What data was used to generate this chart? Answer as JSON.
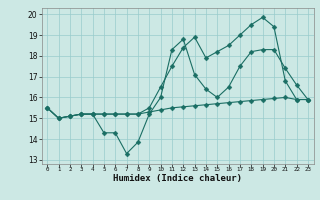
{
  "xlabel": "Humidex (Indice chaleur)",
  "bg_color": "#cce8e4",
  "line_color": "#1a6e64",
  "grid_color": "#99cccc",
  "xlim": [
    -0.5,
    23.5
  ],
  "ylim": [
    12.8,
    20.3
  ],
  "yticks": [
    13,
    14,
    15,
    16,
    17,
    18,
    19,
    20
  ],
  "xticks": [
    0,
    1,
    2,
    3,
    4,
    5,
    6,
    7,
    8,
    9,
    10,
    11,
    12,
    13,
    14,
    15,
    16,
    17,
    18,
    19,
    20,
    21,
    22,
    23
  ],
  "line1_y": [
    15.5,
    15.0,
    15.1,
    15.2,
    15.2,
    15.2,
    15.2,
    15.2,
    15.2,
    15.3,
    15.4,
    15.5,
    15.55,
    15.6,
    15.65,
    15.7,
    15.75,
    15.8,
    15.85,
    15.9,
    15.95,
    16.0,
    15.9,
    15.9
  ],
  "line2_y": [
    15.5,
    15.0,
    15.1,
    15.2,
    15.2,
    14.3,
    14.3,
    13.3,
    13.85,
    15.2,
    16.0,
    18.3,
    18.8,
    17.1,
    16.4,
    16.0,
    16.5,
    17.5,
    18.2,
    18.3,
    18.3,
    17.4,
    16.6,
    15.9
  ],
  "line3_y": [
    15.5,
    15.0,
    15.1,
    15.2,
    15.2,
    15.2,
    15.2,
    15.2,
    15.2,
    15.5,
    16.5,
    17.5,
    18.4,
    18.9,
    17.9,
    18.2,
    18.5,
    19.0,
    19.5,
    19.85,
    19.4,
    16.8,
    15.9,
    15.9
  ]
}
